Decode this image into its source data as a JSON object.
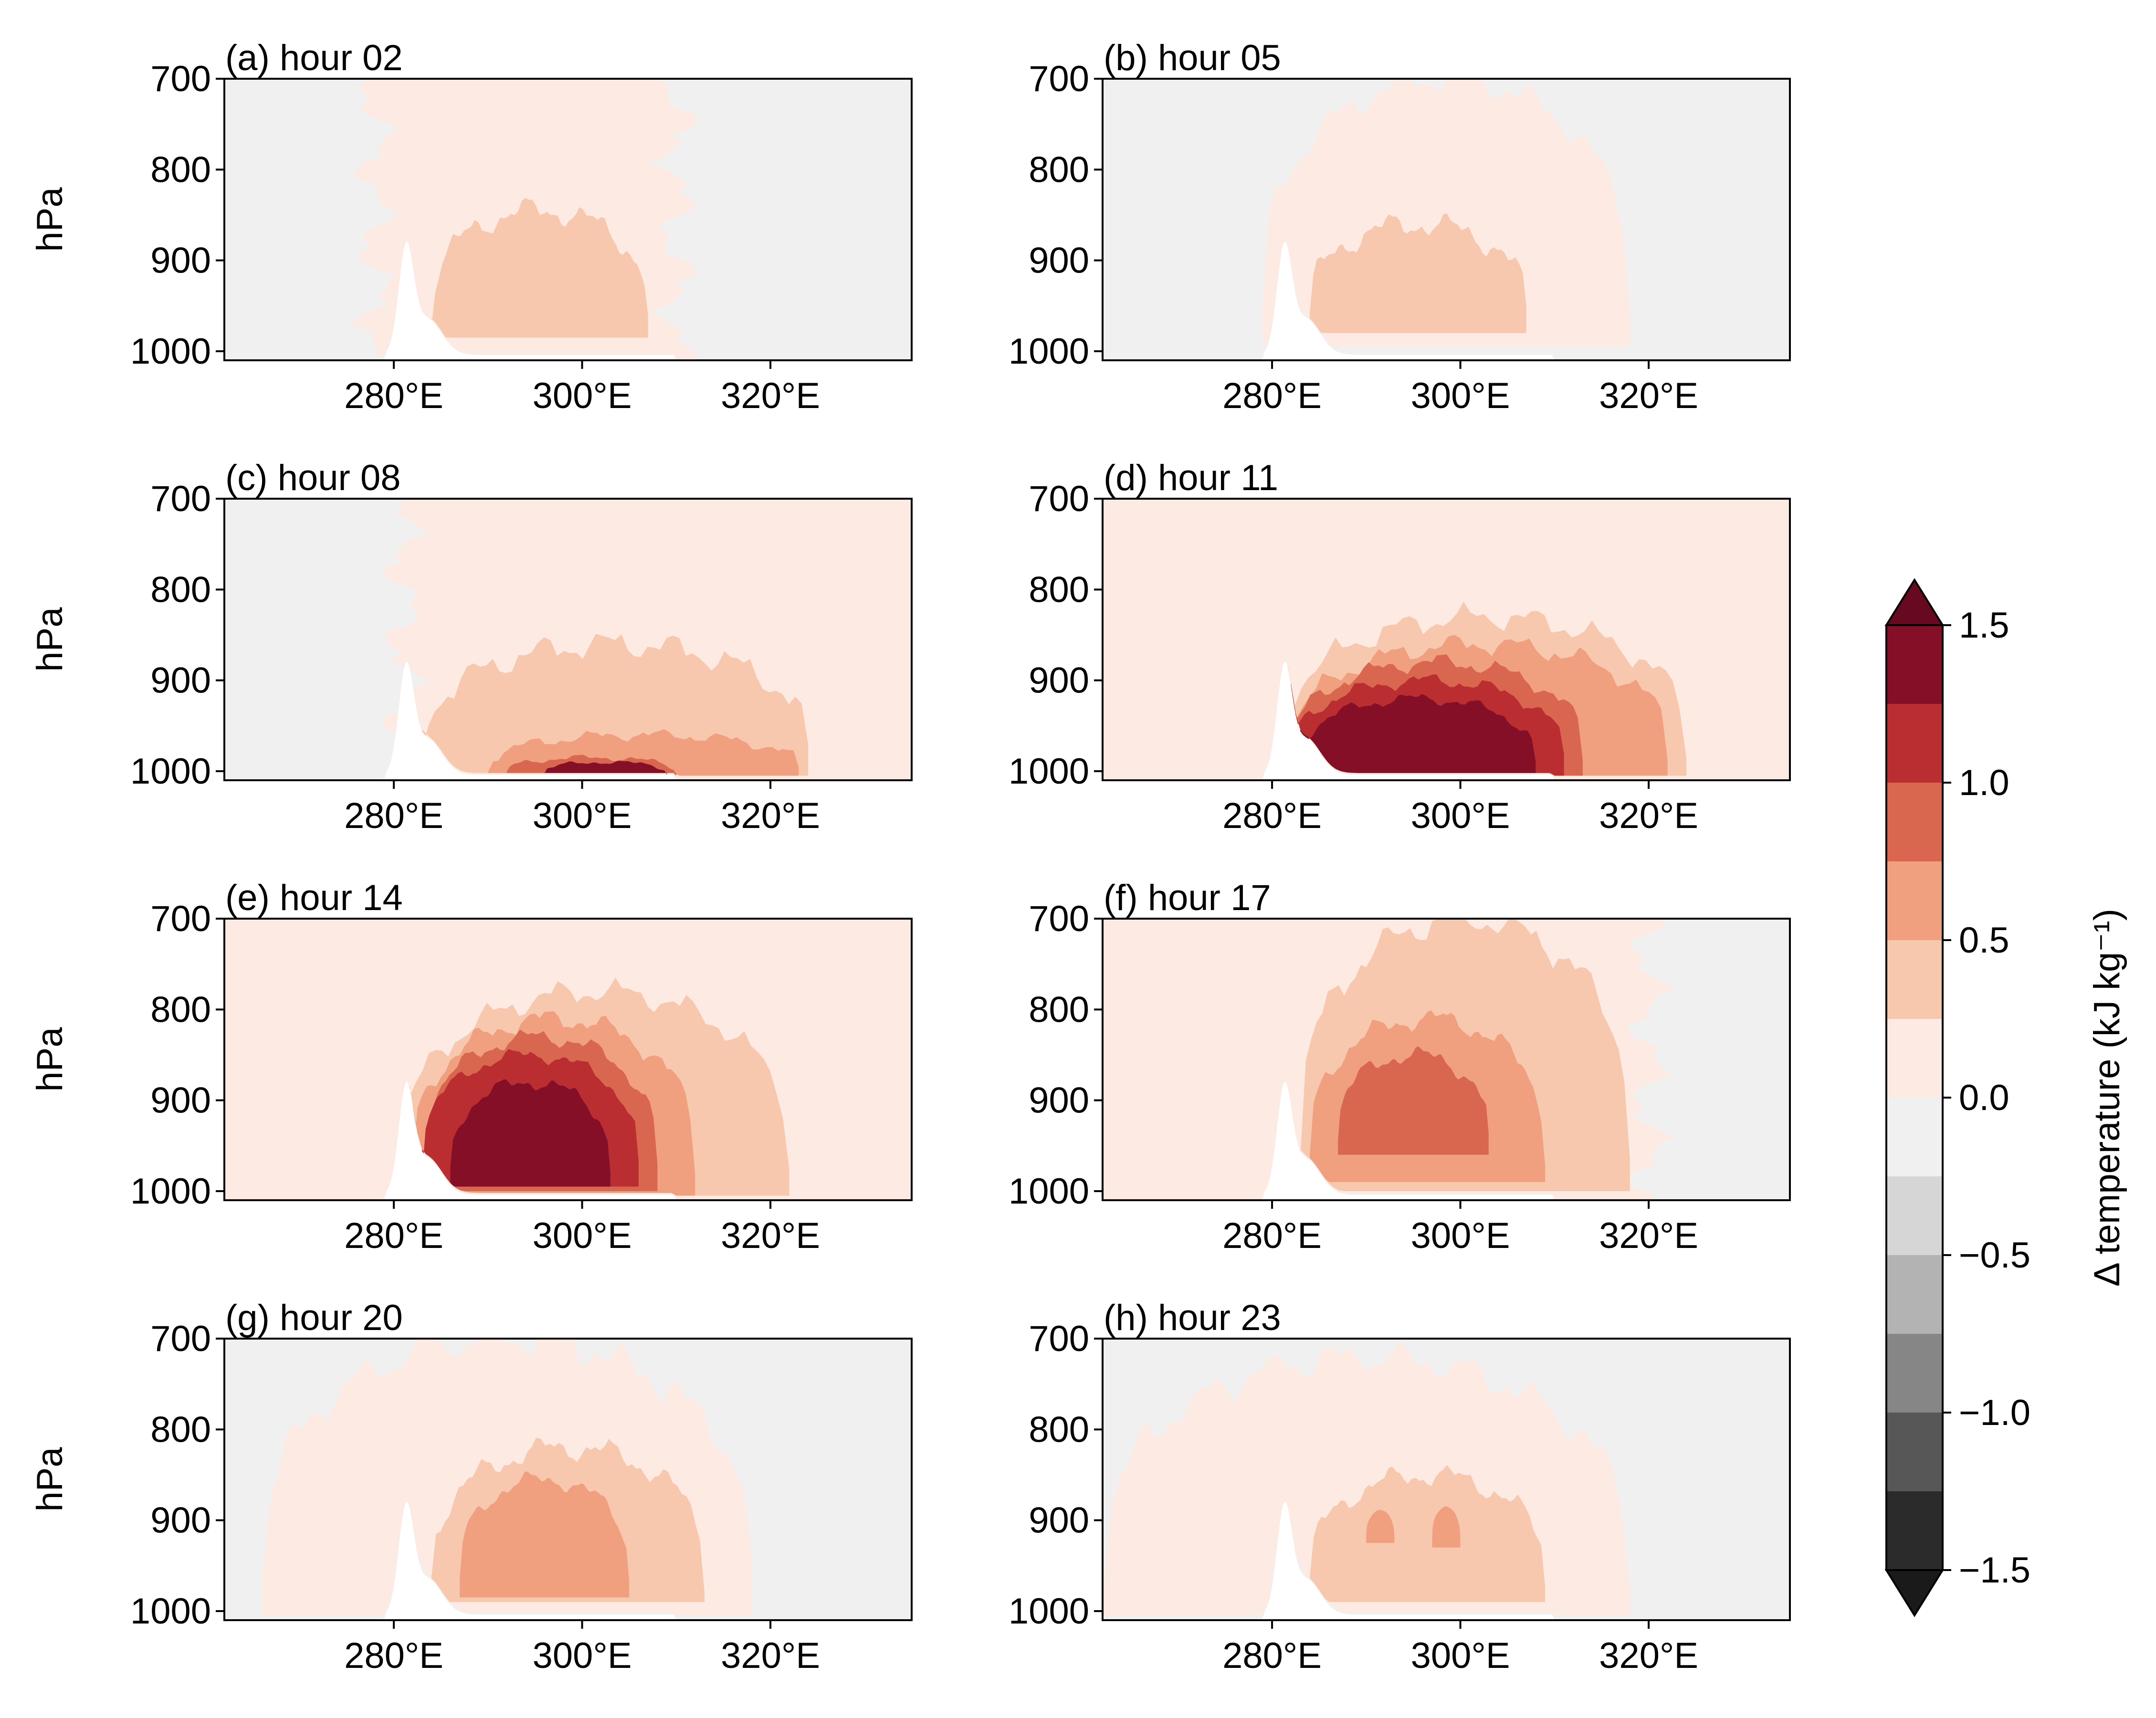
{
  "chart_data": {
    "type": "heatmap",
    "description_kind": "filled contour cross-sections, pressure vs longitude",
    "x_tick_labels": [
      "280°E",
      "300°E",
      "320°E"
    ],
    "x_ticks": [
      280,
      300,
      320
    ],
    "xlim": [
      262,
      335
    ],
    "y_tick_labels": [
      "700",
      "800",
      "900",
      "1000"
    ],
    "y_ticks": [
      700,
      800,
      900,
      1000
    ],
    "ylim": [
      1010,
      700
    ],
    "ylabel": "hPa",
    "colorbar": {
      "label": "Δ temperature (kJ kg⁻¹)",
      "tick_labels": [
        "1.5",
        "1.0",
        "0.5",
        "0.0",
        "−0.5",
        "−1.0",
        "−1.5"
      ],
      "ticks": [
        1.5,
        1.0,
        0.5,
        0.0,
        -0.5,
        -1.0,
        -1.5
      ],
      "range": [
        -1.5,
        1.5
      ],
      "extend": "both",
      "levels": [
        -1.5,
        -1.25,
        -1.0,
        -0.75,
        -0.5,
        -0.25,
        0.0,
        0.25,
        0.5,
        0.75,
        1.0,
        1.25,
        1.5
      ],
      "colors": [
        "#2b2b2b",
        "#575757",
        "#868686",
        "#b3b3b3",
        "#d6d6d6",
        "#f0f0f0",
        "#fdebe3",
        "#f7c7ae",
        "#f0a07f",
        "#d9664f",
        "#ba2e32",
        "#860f28"
      ],
      "over_color": "#670a1f",
      "under_color": "#1a1a1a"
    },
    "panels": [
      {
        "title": "(a) hour 02",
        "peak_anomaly": 0.5
      },
      {
        "title": "(b) hour 05",
        "peak_anomaly": 0.5
      },
      {
        "title": "(c) hour 08",
        "peak_anomaly": 1.5
      },
      {
        "title": "(d) hour 11",
        "peak_anomaly": 1.5
      },
      {
        "title": "(e) hour 14",
        "peak_anomaly": 1.5
      },
      {
        "title": "(f) hour 17",
        "peak_anomaly": 1.0
      },
      {
        "title": "(g) hour 20",
        "peak_anomaly": 0.75
      },
      {
        "title": "(h) hour 23",
        "peak_anomaly": 0.75
      }
    ],
    "grid": false
  }
}
